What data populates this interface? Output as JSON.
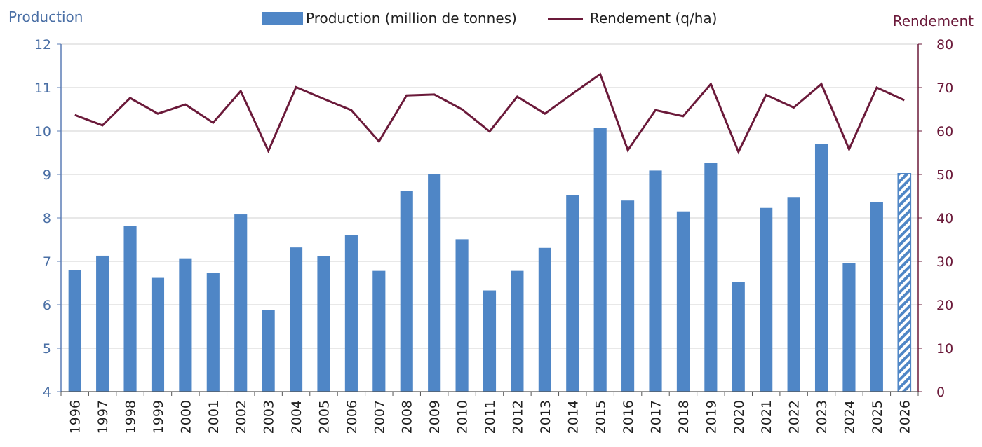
{
  "chart_data": {
    "type": "bar+line",
    "left_axis_title": "Production",
    "right_axis_title": "Rendement",
    "legend": {
      "bar_label": "Production (million de tonnes)",
      "line_label": "Rendement (q/ha)"
    },
    "categories": [
      "1996",
      "1997",
      "1998",
      "1999",
      "2000",
      "2001",
      "2002",
      "2003",
      "2004",
      "2005",
      "2006",
      "2007",
      "2008",
      "2009",
      "2010",
      "2011",
      "2012",
      "2013",
      "2014",
      "2015",
      "2016",
      "2017",
      "2018",
      "2019",
      "2020",
      "2021",
      "2022",
      "2023",
      "2024",
      "2025",
      "2026"
    ],
    "series": [
      {
        "name": "Production (million de tonnes)",
        "axis": "left",
        "type": "bar",
        "values": [
          6.8,
          7.13,
          7.81,
          6.62,
          7.07,
          6.74,
          8.08,
          5.88,
          7.32,
          7.12,
          7.6,
          6.78,
          8.62,
          9.0,
          7.51,
          6.33,
          6.78,
          7.31,
          8.52,
          10.07,
          8.4,
          9.09,
          8.15,
          9.26,
          6.53,
          8.23,
          8.48,
          9.7,
          6.96,
          8.36,
          9.02
        ],
        "hatched_categories": [
          "2026"
        ]
      },
      {
        "name": "Rendement (q/ha)",
        "axis": "right",
        "type": "line",
        "values": [
          63.7,
          61.3,
          67.6,
          64.0,
          66.1,
          61.9,
          69.2,
          55.4,
          70.1,
          67.4,
          64.8,
          57.6,
          68.2,
          68.4,
          65.0,
          59.9,
          67.9,
          64.0,
          68.6,
          73.1,
          55.6,
          64.8,
          63.4,
          70.8,
          55.2,
          68.3,
          65.4,
          70.8,
          55.8,
          70.0,
          67.1
        ]
      }
    ],
    "y_left": {
      "min": 4,
      "max": 12,
      "ticks": [
        4,
        5,
        6,
        7,
        8,
        9,
        10,
        11,
        12
      ]
    },
    "y_right": {
      "min": 0,
      "max": 80,
      "ticks": [
        0,
        10,
        20,
        30,
        40,
        50,
        60,
        70,
        80
      ]
    },
    "grid": true,
    "legend_position": "top-center",
    "colors": {
      "bar": "#4f86c6",
      "line": "#6b1a3a",
      "left_tick": "#4a6fa5",
      "right_tick": "#6b1a3a",
      "grid": "#d0d0d0"
    }
  }
}
